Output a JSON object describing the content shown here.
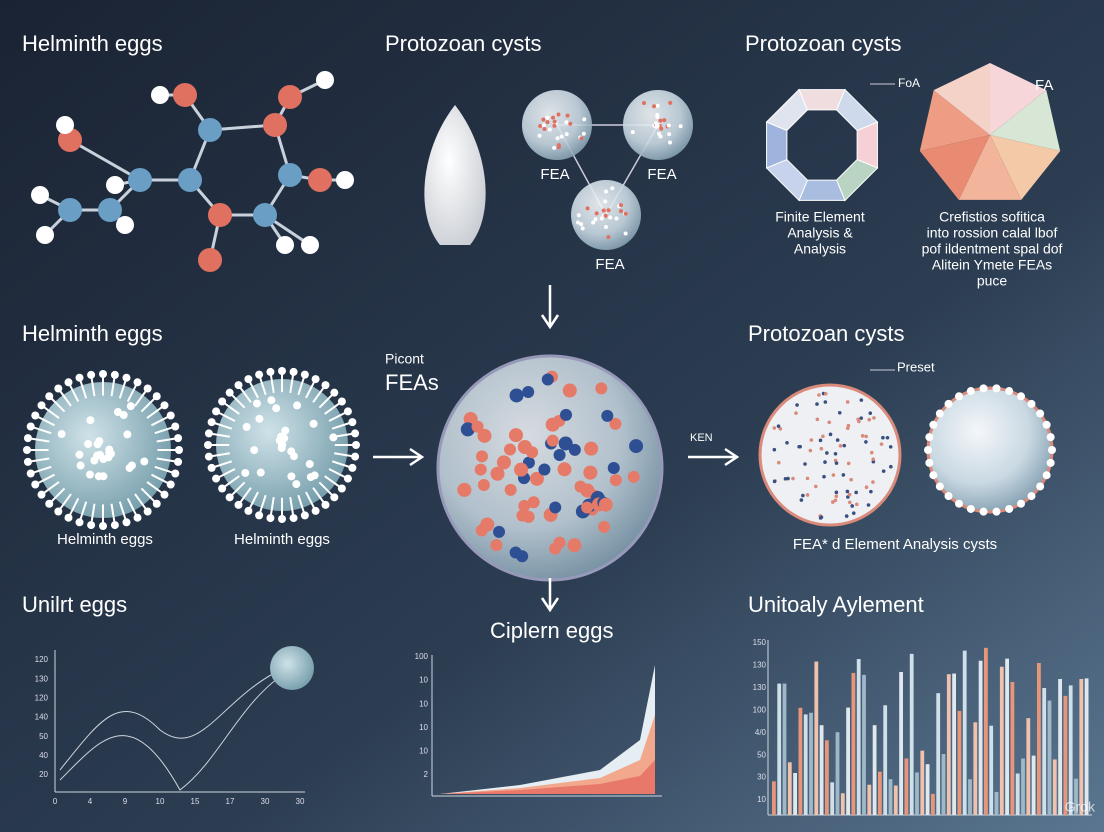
{
  "top": {
    "left": {
      "title": "Helminth eggs"
    },
    "middle": {
      "title": "Protozoan cysts",
      "labels": [
        "FEA",
        "FEA",
        "FEA"
      ]
    },
    "right": {
      "title": "Protozoan cysts",
      "ring_label": "FoA",
      "pie_label": "FA",
      "ring_caption": [
        "Finite Element",
        "Analysis &",
        "Analysis"
      ],
      "pie_caption": [
        "Crefistios sofitica",
        "into rossion calal lbof",
        "pof ildentment spal dof",
        "Alitein Ymete FEAs",
        "puce"
      ]
    }
  },
  "middle": {
    "left": {
      "title": "Helminth eggs",
      "labels": [
        "Helminth eggs",
        "Helminth eggs"
      ]
    },
    "center": {
      "small_label": "Picont",
      "label": "FEAs"
    },
    "right": {
      "title": "Protozoan cysts",
      "arrow_label": "KEN",
      "pointer_label": "Preset",
      "caption": "FEA* d Element Analysis cysts"
    }
  },
  "bottom": {
    "left": {
      "title": "Unilrt eggs",
      "yticks": [
        "120",
        "130",
        "120",
        "140",
        "50",
        "40",
        "20"
      ],
      "xticks": [
        "0",
        "4",
        "9",
        "10",
        "15",
        "17",
        "30",
        "30"
      ]
    },
    "center": {
      "title": "Ciplern eggs",
      "yticks": [
        "100",
        "10",
        "10",
        "10",
        "10",
        "2"
      ]
    },
    "right": {
      "title": "Unitoaly Aylement",
      "yticks": [
        "150",
        "130",
        "130",
        "100",
        "4/0",
        "50",
        "30",
        "10"
      ]
    }
  },
  "watermark": "Grok"
}
